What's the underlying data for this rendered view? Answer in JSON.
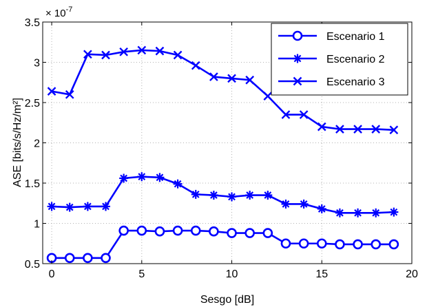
{
  "chart_data": {
    "type": "line",
    "xlabel": "Sesgo [dB]",
    "ylabel": "ASE [bits/s/Hz/m²]",
    "y_multiplier": "× 10",
    "y_multiplier_exp": "-7",
    "xlim": [
      -0.5,
      20
    ],
    "ylim": [
      0.5,
      3.5
    ],
    "xticks": [
      0,
      5,
      10,
      15,
      20
    ],
    "yticks": [
      0.5,
      1,
      1.5,
      2,
      2.5,
      3,
      3.5
    ],
    "xtick_labels": [
      "0",
      "5",
      "10",
      "15",
      "20"
    ],
    "ytick_labels": [
      "0.5",
      "1",
      "1.5",
      "2",
      "2.5",
      "3",
      "3.5"
    ],
    "grid": true,
    "legend_position": "top-right",
    "line_color": "#0000ff",
    "x": [
      0,
      1,
      2,
      3,
      4,
      5,
      6,
      7,
      8,
      9,
      10,
      11,
      12,
      13,
      14,
      15,
      16,
      17,
      18,
      19
    ],
    "series": [
      {
        "name": "Escenario 1",
        "marker": "circle",
        "values": [
          0.57,
          0.57,
          0.57,
          0.57,
          0.91,
          0.91,
          0.9,
          0.91,
          0.91,
          0.9,
          0.88,
          0.88,
          0.88,
          0.75,
          0.75,
          0.75,
          0.74,
          0.74,
          0.74,
          0.74
        ]
      },
      {
        "name": "Escenario 2",
        "marker": "asterisk",
        "values": [
          1.21,
          1.2,
          1.21,
          1.21,
          1.56,
          1.58,
          1.57,
          1.49,
          1.36,
          1.35,
          1.33,
          1.35,
          1.35,
          1.24,
          1.24,
          1.18,
          1.13,
          1.13,
          1.13,
          1.14
        ]
      },
      {
        "name": "Escenario 3",
        "marker": "x",
        "values": [
          2.64,
          2.6,
          3.1,
          3.09,
          3.13,
          3.15,
          3.14,
          3.09,
          2.96,
          2.82,
          2.8,
          2.78,
          2.58,
          2.35,
          2.35,
          2.2,
          2.17,
          2.17,
          2.17,
          2.16
        ]
      }
    ]
  }
}
